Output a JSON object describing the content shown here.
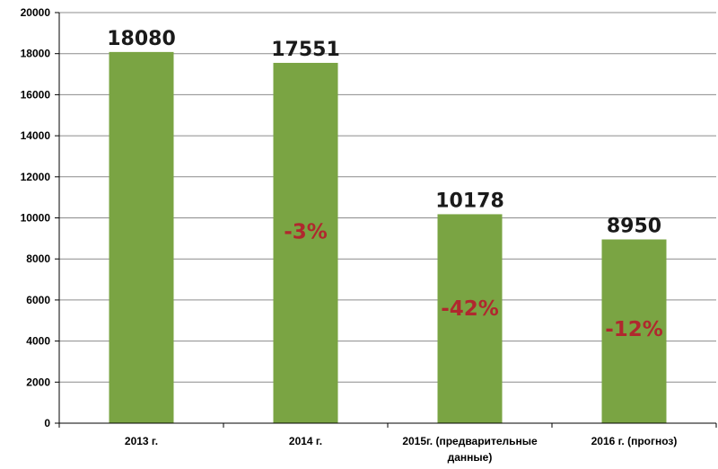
{
  "chart_data": {
    "type": "bar",
    "categories": [
      "2013 г.",
      "2014 г.",
      "2015г. (предварительные данные)",
      "2016 г. (прогноз)"
    ],
    "category_lines": [
      [
        "2013 г."
      ],
      [
        "2014 г."
      ],
      [
        "2015г. (предварительные",
        "данные)"
      ],
      [
        "2016 г. (прогноз)"
      ]
    ],
    "values": [
      18080,
      17551,
      10178,
      8950
    ],
    "value_labels": [
      "18080",
      "17551",
      "10178",
      "8950"
    ],
    "percent_labels": [
      "",
      "-3%",
      "-42%",
      "-12%"
    ],
    "percent_label_values": [
      null,
      9000,
      5250,
      4250
    ],
    "ylim": [
      0,
      20000
    ],
    "yticks": [
      0,
      2000,
      4000,
      6000,
      8000,
      10000,
      12000,
      14000,
      16000,
      18000,
      20000
    ],
    "grid": true,
    "legend": "none",
    "title": "",
    "xlabel": "",
    "ylabel": "",
    "colors": {
      "bar": "#7aa443",
      "percent": "#b0282e",
      "grid": "#8c8c8c",
      "axis": "#000000"
    }
  }
}
